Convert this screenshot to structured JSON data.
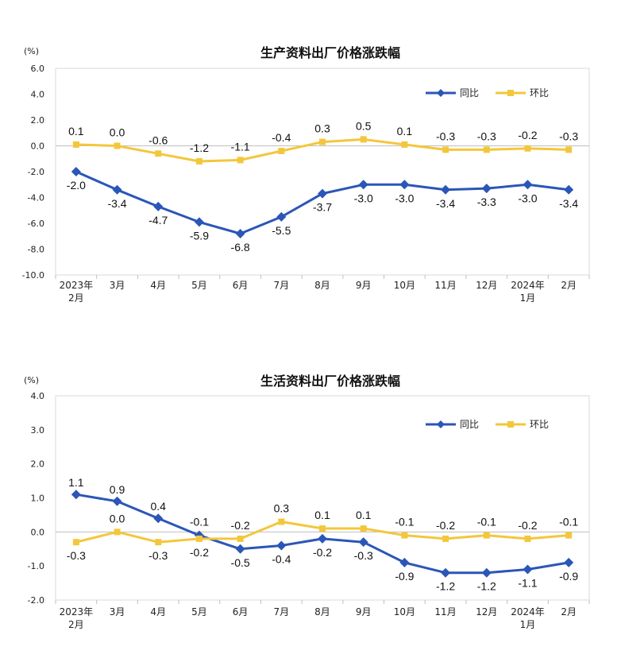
{
  "chart_data": [
    {
      "type": "line",
      "title": "生产资料出厂价格涨跌幅",
      "unit": "(%)",
      "ylim": [
        -10.0,
        6.0
      ],
      "yticks": [
        "6.0",
        "4.0",
        "2.0",
        "0.0",
        "-2.0",
        "-4.0",
        "-6.0",
        "-8.0",
        "-10.0"
      ],
      "categories": [
        [
          "2023年",
          "2月"
        ],
        [
          "3月"
        ],
        [
          "4月"
        ],
        [
          "5月"
        ],
        [
          "6月"
        ],
        [
          "7月"
        ],
        [
          "8月"
        ],
        [
          "9月"
        ],
        [
          "10月"
        ],
        [
          "11月"
        ],
        [
          "12月"
        ],
        [
          "2024年",
          "1月"
        ],
        [
          "2月"
        ]
      ],
      "legend_position": "top-right",
      "series": [
        {
          "name": "同比",
          "color": "#2b56b8",
          "marker": "diamond",
          "values": [
            -2.0,
            -3.4,
            -4.7,
            -5.9,
            -6.8,
            -5.5,
            -3.7,
            -3.0,
            -3.0,
            -3.4,
            -3.3,
            -3.0,
            -3.4
          ],
          "labels": [
            "-2.0",
            "-3.4",
            "-4.7",
            "-5.9",
            "-6.8",
            "-5.5",
            "-3.7",
            "-3.0",
            "-3.0",
            "-3.4",
            "-3.3",
            "-3.0",
            "-3.4"
          ]
        },
        {
          "name": "环比",
          "color": "#f3c73c",
          "marker": "square",
          "values": [
            0.1,
            0.0,
            -0.6,
            -1.2,
            -1.1,
            -0.4,
            0.3,
            0.5,
            0.1,
            -0.3,
            -0.3,
            -0.2,
            -0.3
          ],
          "labels": [
            "0.1",
            "0.0",
            "-0.6",
            "-1.2",
            "-1.1",
            "-0.4",
            "0.3",
            "0.5",
            "0.1",
            "-0.3",
            "-0.3",
            "-0.2",
            "-0.3"
          ]
        }
      ]
    },
    {
      "type": "line",
      "title": "生活资料出厂价格涨跌幅",
      "unit": "(%)",
      "ylim": [
        -2.0,
        4.0
      ],
      "yticks": [
        "4.0",
        "3.0",
        "2.0",
        "1.0",
        "0.0",
        "-1.0",
        "-2.0"
      ],
      "categories": [
        [
          "2023年",
          "2月"
        ],
        [
          "3月"
        ],
        [
          "4月"
        ],
        [
          "5月"
        ],
        [
          "6月"
        ],
        [
          "7月"
        ],
        [
          "8月"
        ],
        [
          "9月"
        ],
        [
          "10月"
        ],
        [
          "11月"
        ],
        [
          "12月"
        ],
        [
          "2024年",
          "1月"
        ],
        [
          "2月"
        ]
      ],
      "legend_position": "top-right",
      "series": [
        {
          "name": "同比",
          "color": "#2b56b8",
          "marker": "diamond",
          "values": [
            1.1,
            0.9,
            0.4,
            -0.1,
            -0.5,
            -0.4,
            -0.2,
            -0.3,
            -0.9,
            -1.2,
            -1.2,
            -1.1,
            -0.9
          ],
          "labels": [
            "1.1",
            "0.9",
            "0.4",
            "-0.1",
            "-0.5",
            "-0.4",
            "-0.2",
            "-0.3",
            "-0.9",
            "-1.2",
            "-1.2",
            "-1.1",
            "-0.9"
          ]
        },
        {
          "name": "环比",
          "color": "#f3c73c",
          "marker": "square",
          "values": [
            -0.3,
            0.0,
            -0.3,
            -0.2,
            -0.2,
            0.3,
            0.1,
            0.1,
            -0.1,
            -0.2,
            -0.1,
            -0.2,
            -0.1
          ],
          "labels": [
            "-0.3",
            "0.0",
            "-0.3",
            "-0.2",
            "-0.2",
            "0.3",
            "0.1",
            "0.1",
            "-0.1",
            "-0.2",
            "-0.1",
            "-0.2",
            "-0.1"
          ]
        }
      ]
    }
  ]
}
